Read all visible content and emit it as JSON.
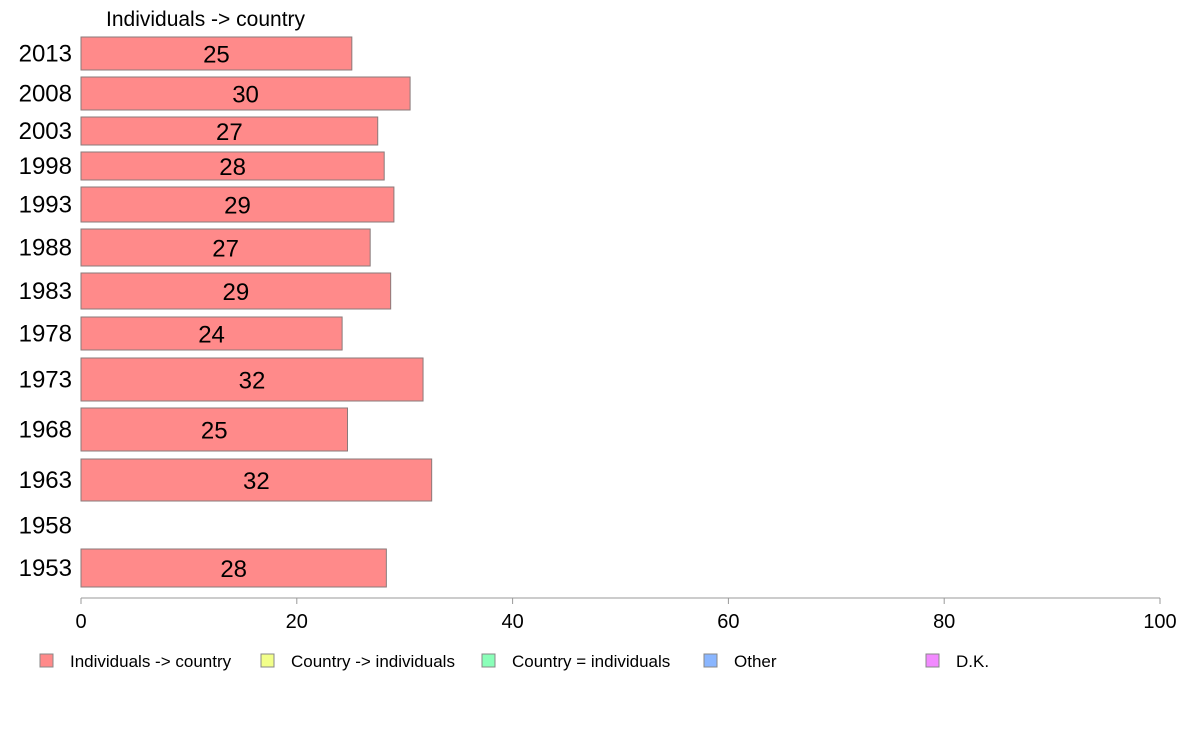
{
  "chart_data": {
    "type": "bar",
    "orientation": "horizontal",
    "title": "Individuals -> country",
    "categories": [
      "2013",
      "2008",
      "2003",
      "1998",
      "1993",
      "1988",
      "1983",
      "1978",
      "1973",
      "1968",
      "1963",
      "1958",
      "1953"
    ],
    "series": [
      {
        "name": "Individuals -> country",
        "color": "#ff8a8a",
        "values": [
          25,
          30,
          27,
          28,
          29,
          27,
          29,
          24,
          32,
          25,
          32,
          null,
          28
        ],
        "value_labels": [
          "25",
          "30",
          "27",
          "28",
          "29",
          "27",
          "29",
          "24",
          "32",
          "25",
          "32",
          null,
          "28"
        ],
        "precise_values": [
          25.1,
          30.5,
          27.5,
          28.1,
          29.0,
          26.8,
          28.7,
          24.2,
          31.7,
          24.7,
          32.5,
          null,
          28.3
        ]
      }
    ],
    "xlim": [
      0,
      100
    ],
    "xticks": [
      "0",
      "20",
      "40",
      "60",
      "80",
      "100"
    ],
    "grid": false,
    "legend": {
      "position": "bottom",
      "items": [
        {
          "label": "Individuals -> country",
          "color": "#ff8a8a"
        },
        {
          "label": "Country -> individuals",
          "color": "#f2ff8a"
        },
        {
          "label": "Country = individuals",
          "color": "#8affb9"
        },
        {
          "label": "Other",
          "color": "#8ab6ff"
        },
        {
          "label": "D.K.",
          "color": "#f28aff"
        }
      ]
    }
  }
}
